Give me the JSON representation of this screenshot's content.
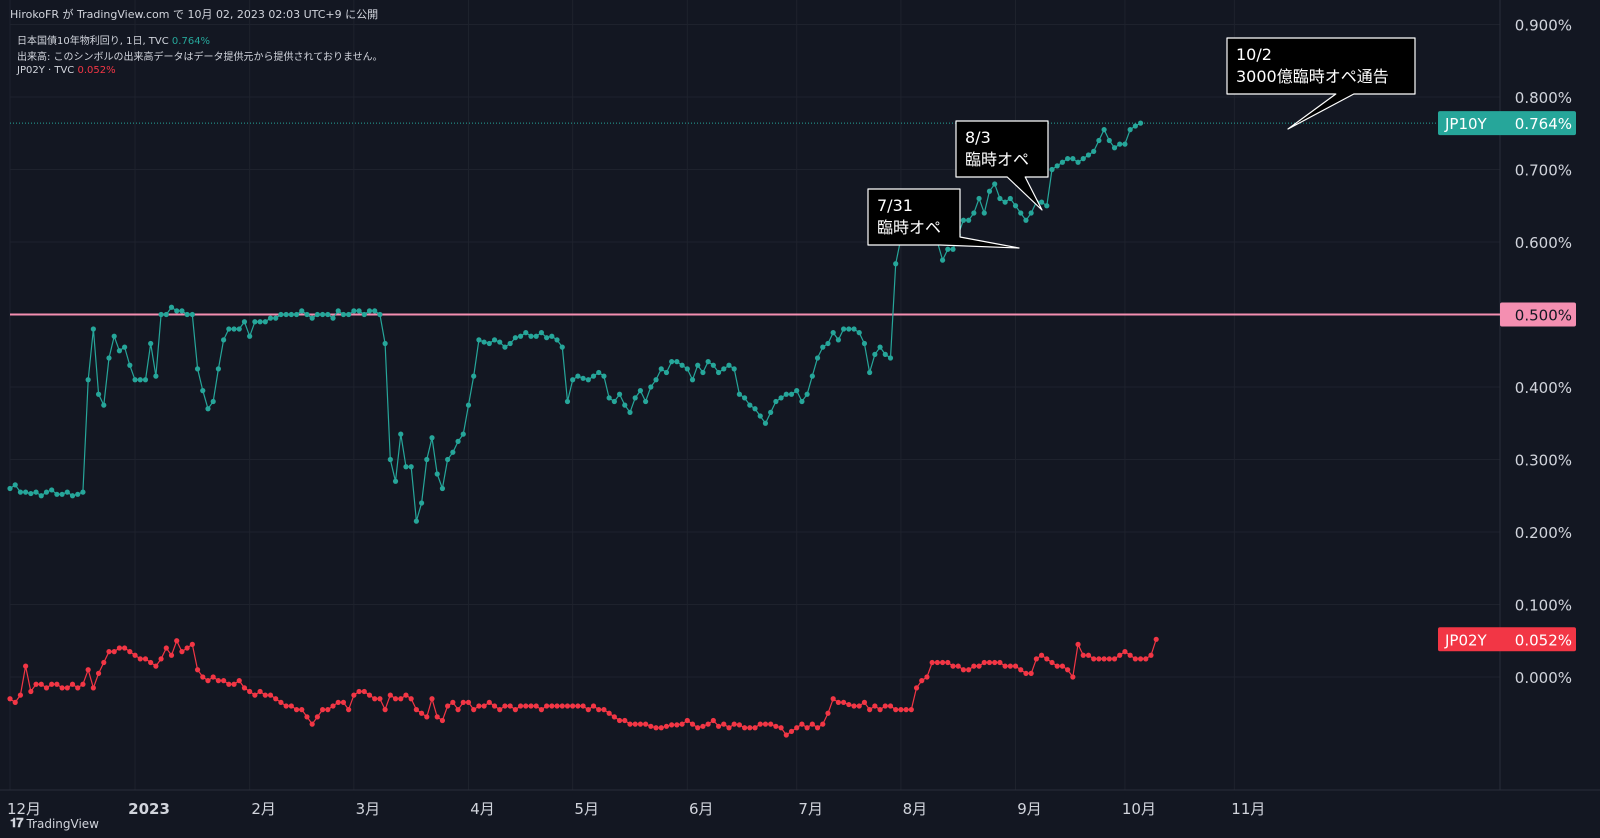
{
  "header": {
    "published_by": "HirokoFR が TradingView.com で 10月 02, 2023 02:03 UTC+9 に公開"
  },
  "legend": {
    "main_symbol": "日本国債10年物利回り, 1日, TVC",
    "main_value": "0.764%",
    "volume_note": "出来高: このシンボルの出来高データはデータ提供元から提供されておりません。",
    "second_symbol": "JP02Y · TVC",
    "second_value": "0.052%"
  },
  "footer": {
    "brand": "TradingView",
    "logo_icon": "tradingview-logo-icon"
  },
  "colors": {
    "background": "#131722",
    "jp10y": "#26a69a",
    "jp02y": "#f23645",
    "hline": "#f48fb1",
    "axis_text": "#d1d4dc",
    "grid": "#1e222d"
  },
  "chart_data": {
    "type": "line",
    "y_unit": "%",
    "ylim": [
      -0.12,
      0.92
    ],
    "y_ticks": [
      "0.900%",
      "0.800%",
      "0.700%",
      "0.600%",
      "0.500%",
      "0.400%",
      "0.300%",
      "0.200%",
      "0.100%",
      "0.000%"
    ],
    "y_tick_values": [
      0.9,
      0.8,
      0.7,
      0.6,
      0.5,
      0.4,
      0.3,
      0.2,
      0.1,
      0.0
    ],
    "x_ticks": [
      {
        "label": "12月",
        "t": 0,
        "bold": false
      },
      {
        "label": "2023",
        "t": 24,
        "bold": true
      },
      {
        "label": "2月",
        "t": 46,
        "bold": false
      },
      {
        "label": "3月",
        "t": 66,
        "bold": false
      },
      {
        "label": "4月",
        "t": 88,
        "bold": false
      },
      {
        "label": "5月",
        "t": 108,
        "bold": false
      },
      {
        "label": "6月",
        "t": 130,
        "bold": false
      },
      {
        "label": "7月",
        "t": 151,
        "bold": false
      },
      {
        "label": "8月",
        "t": 171,
        "bold": false
      },
      {
        "label": "9月",
        "t": 193,
        "bold": false
      },
      {
        "label": "10月",
        "t": 214,
        "bold": false
      },
      {
        "label": "11月",
        "t": 235,
        "bold": false
      }
    ],
    "horizontal_line": {
      "value": 0.5,
      "label": "0.500%"
    },
    "series": [
      {
        "name": "JP10Y",
        "last_label": "0.764%",
        "values": [
          0.26,
          0.265,
          0.255,
          0.255,
          0.253,
          0.255,
          0.25,
          0.255,
          0.258,
          0.252,
          0.252,
          0.255,
          0.25,
          0.252,
          0.255,
          0.41,
          0.48,
          0.39,
          0.375,
          0.44,
          0.47,
          0.45,
          0.455,
          0.43,
          0.41,
          0.41,
          0.41,
          0.46,
          0.415,
          0.5,
          0.5,
          0.51,
          0.505,
          0.505,
          0.5,
          0.5,
          0.425,
          0.395,
          0.37,
          0.38,
          0.425,
          0.465,
          0.48,
          0.48,
          0.48,
          0.49,
          0.47,
          0.49,
          0.49,
          0.49,
          0.495,
          0.495,
          0.5,
          0.5,
          0.5,
          0.5,
          0.505,
          0.5,
          0.495,
          0.5,
          0.5,
          0.5,
          0.495,
          0.505,
          0.5,
          0.5,
          0.505,
          0.505,
          0.5,
          0.505,
          0.505,
          0.5,
          0.46,
          0.3,
          0.27,
          0.335,
          0.29,
          0.29,
          0.215,
          0.24,
          0.3,
          0.33,
          0.28,
          0.26,
          0.3,
          0.31,
          0.325,
          0.335,
          0.375,
          0.415,
          0.465,
          0.462,
          0.46,
          0.465,
          0.462,
          0.455,
          0.46,
          0.468,
          0.47,
          0.475,
          0.47,
          0.47,
          0.475,
          0.468,
          0.47,
          0.465,
          0.455,
          0.38,
          0.41,
          0.415,
          0.412,
          0.41,
          0.415,
          0.42,
          0.415,
          0.385,
          0.38,
          0.39,
          0.375,
          0.365,
          0.385,
          0.395,
          0.38,
          0.4,
          0.41,
          0.425,
          0.42,
          0.435,
          0.435,
          0.43,
          0.425,
          0.41,
          0.43,
          0.42,
          0.435,
          0.43,
          0.42,
          0.425,
          0.43,
          0.425,
          0.39,
          0.385,
          0.375,
          0.37,
          0.36,
          0.35,
          0.365,
          0.38,
          0.385,
          0.39,
          0.39,
          0.395,
          0.38,
          0.39,
          0.415,
          0.44,
          0.455,
          0.46,
          0.475,
          0.465,
          0.48,
          0.48,
          0.48,
          0.475,
          0.46,
          0.42,
          0.445,
          0.455,
          0.445,
          0.44,
          0.57,
          0.605,
          0.602,
          0.62,
          0.64,
          0.65,
          0.63,
          0.615,
          0.6,
          0.575,
          0.59,
          0.59,
          0.61,
          0.63,
          0.63,
          0.64,
          0.66,
          0.64,
          0.67,
          0.68,
          0.66,
          0.655,
          0.66,
          0.65,
          0.64,
          0.63,
          0.64,
          0.655,
          0.655,
          0.65,
          0.7,
          0.705,
          0.71,
          0.715,
          0.715,
          0.71,
          0.715,
          0.72,
          0.725,
          0.74,
          0.755,
          0.74,
          0.73,
          0.735,
          0.735,
          0.755,
          0.76,
          0.764
        ]
      },
      {
        "name": "JP02Y",
        "last_label": "0.052%",
        "values": [
          -0.03,
          -0.035,
          -0.025,
          0.015,
          -0.02,
          -0.01,
          -0.01,
          -0.015,
          -0.01,
          -0.01,
          -0.015,
          -0.015,
          -0.01,
          -0.015,
          -0.01,
          0.01,
          -0.015,
          0.005,
          0.02,
          0.035,
          0.035,
          0.04,
          0.04,
          0.035,
          0.03,
          0.025,
          0.025,
          0.02,
          0.015,
          0.025,
          0.04,
          0.03,
          0.05,
          0.035,
          0.04,
          0.045,
          0.01,
          0.0,
          -0.005,
          0.0,
          -0.005,
          -0.005,
          -0.01,
          -0.01,
          -0.005,
          -0.015,
          -0.02,
          -0.025,
          -0.02,
          -0.025,
          -0.025,
          -0.03,
          -0.035,
          -0.04,
          -0.04,
          -0.045,
          -0.045,
          -0.055,
          -0.065,
          -0.055,
          -0.045,
          -0.045,
          -0.04,
          -0.035,
          -0.035,
          -0.045,
          -0.025,
          -0.02,
          -0.02,
          -0.025,
          -0.03,
          -0.03,
          -0.045,
          -0.025,
          -0.03,
          -0.03,
          -0.025,
          -0.03,
          -0.045,
          -0.05,
          -0.055,
          -0.03,
          -0.055,
          -0.06,
          -0.04,
          -0.035,
          -0.045,
          -0.035,
          -0.035,
          -0.045,
          -0.04,
          -0.04,
          -0.035,
          -0.04,
          -0.045,
          -0.04,
          -0.04,
          -0.045,
          -0.04,
          -0.04,
          -0.04,
          -0.04,
          -0.045,
          -0.04,
          -0.04,
          -0.04,
          -0.04,
          -0.04,
          -0.04,
          -0.04,
          -0.04,
          -0.045,
          -0.04,
          -0.045,
          -0.045,
          -0.05,
          -0.055,
          -0.06,
          -0.06,
          -0.065,
          -0.065,
          -0.065,
          -0.065,
          -0.068,
          -0.07,
          -0.07,
          -0.068,
          -0.066,
          -0.066,
          -0.065,
          -0.06,
          -0.065,
          -0.07,
          -0.068,
          -0.065,
          -0.06,
          -0.068,
          -0.065,
          -0.07,
          -0.065,
          -0.066,
          -0.07,
          -0.07,
          -0.07,
          -0.065,
          -0.065,
          -0.065,
          -0.068,
          -0.07,
          -0.08,
          -0.075,
          -0.07,
          -0.065,
          -0.07,
          -0.065,
          -0.07,
          -0.065,
          -0.05,
          -0.03,
          -0.035,
          -0.035,
          -0.038,
          -0.04,
          -0.04,
          -0.035,
          -0.045,
          -0.04,
          -0.045,
          -0.04,
          -0.04,
          -0.045,
          -0.045,
          -0.045,
          -0.045,
          -0.015,
          -0.005,
          0.0,
          0.02,
          0.02,
          0.02,
          0.02,
          0.015,
          0.015,
          0.01,
          0.01,
          0.015,
          0.015,
          0.02,
          0.02,
          0.02,
          0.02,
          0.015,
          0.015,
          0.015,
          0.01,
          0.005,
          0.005,
          0.025,
          0.03,
          0.025,
          0.02,
          0.015,
          0.015,
          0.01,
          0.0,
          0.045,
          0.03,
          0.03,
          0.025,
          0.025,
          0.025,
          0.025,
          0.025,
          0.03,
          0.035,
          0.03,
          0.025,
          0.025,
          0.025,
          0.03,
          0.052
        ]
      }
    ],
    "annotations": [
      {
        "date": "7/31",
        "text": "臨時オペ",
        "t": 173
      },
      {
        "date": "8/3",
        "text": "臨時オペ",
        "t": 176
      },
      {
        "date": "10/2",
        "text": "3000億臨時オペ通告",
        "t": 214
      }
    ]
  }
}
